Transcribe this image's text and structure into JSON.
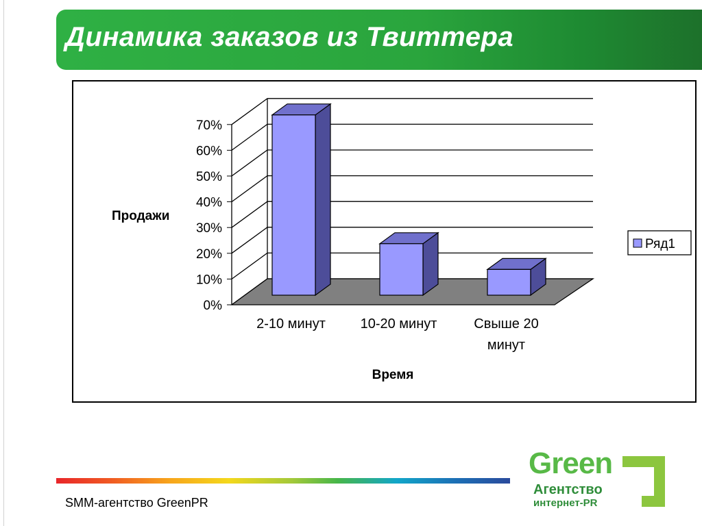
{
  "slide": {
    "title": "Динамика заказов из Твиттера",
    "footer": "SMM-агентство GreenPR"
  },
  "logo": {
    "word": "Green",
    "line1": "Агентство",
    "line2": "интернет-PR"
  },
  "colors": {
    "banner": "#2aa53d",
    "bar_front": "#9999ff",
    "bar_top": "#7070cc",
    "bar_side": "#4d4d99",
    "floor": "#808080"
  },
  "chart_data": {
    "type": "bar",
    "style": "3d-column",
    "categories": [
      "2-10 минут",
      "10-20 минут",
      "Свыше 20 минут"
    ],
    "series": [
      {
        "name": "Ряд1",
        "values": [
          0.7,
          0.2,
          0.1
        ]
      }
    ],
    "xlabel": "Время",
    "ylabel": "Продажи",
    "ylim": [
      0,
      0.7
    ],
    "yticks": [
      "0%",
      "10%",
      "20%",
      "30%",
      "40%",
      "50%",
      "60%",
      "70%"
    ],
    "grid": true,
    "legend": "right"
  }
}
